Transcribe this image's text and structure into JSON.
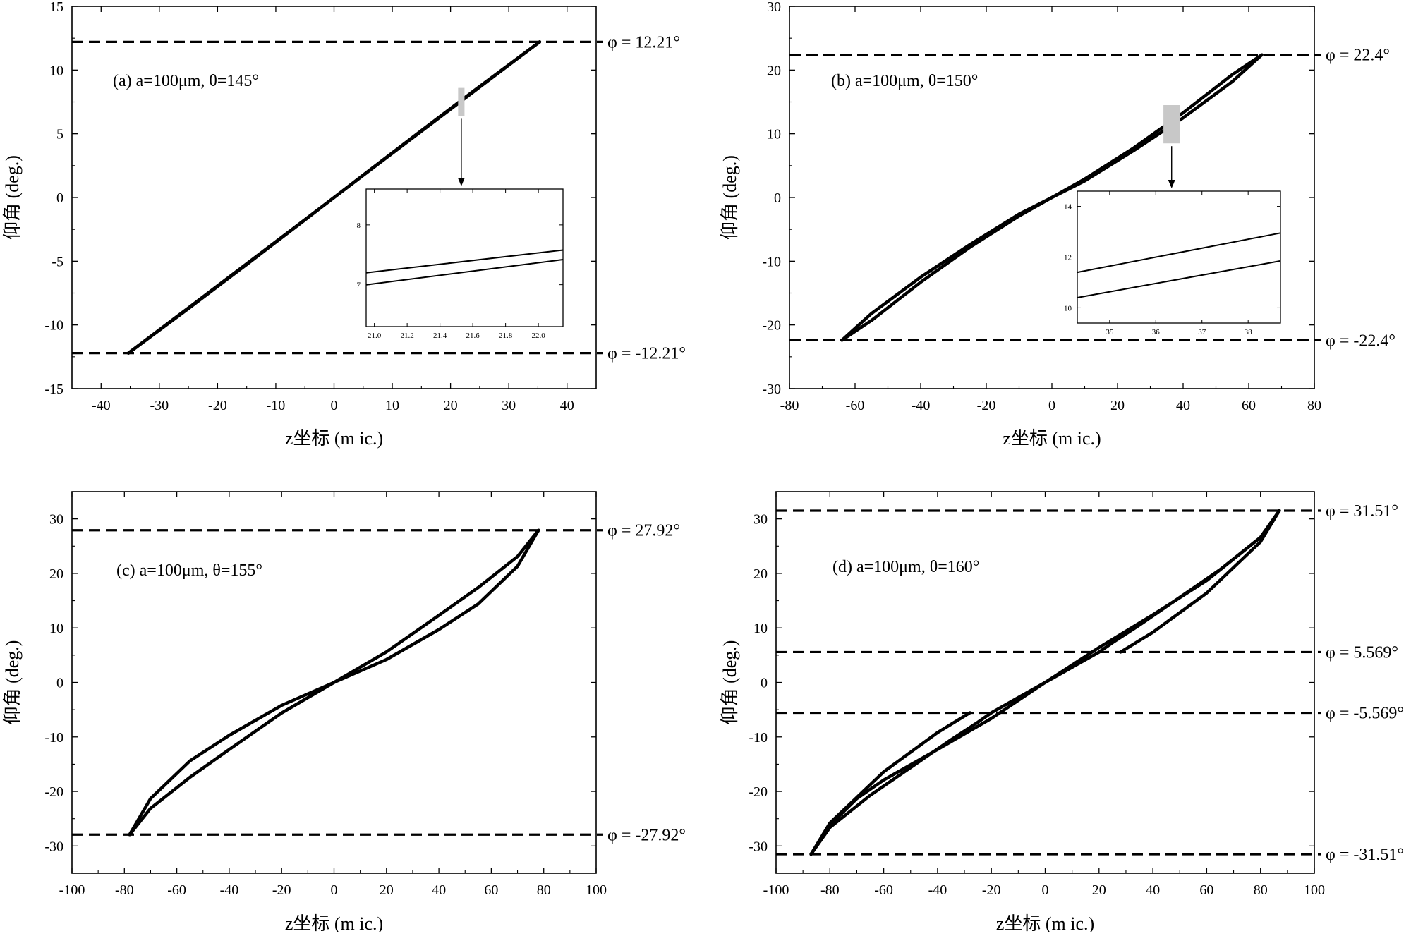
{
  "chart_data": [
    {
      "type": "line",
      "panel": "a",
      "annotation": "(a) a=100μm, θ=145°",
      "xlabel": "z坐标 (m ic.)",
      "ylabel": "仰角 (deg.)",
      "xlim": [
        -45,
        45
      ],
      "ylim": [
        -15,
        15
      ],
      "xticks": [
        -40,
        -30,
        -20,
        -10,
        0,
        10,
        20,
        30,
        40
      ],
      "yticks": [
        -15,
        -10,
        -5,
        0,
        5,
        10,
        15
      ],
      "hlines": [
        {
          "y": 12.21,
          "label": "φ = 12.21°"
        },
        {
          "y": -12.21,
          "label": "φ = -12.21°"
        }
      ],
      "series": [
        {
          "x": [
            -35.3,
            -25,
            -15,
            -5,
            0,
            5,
            15,
            25,
            35.3
          ],
          "y": [
            -12.21,
            -8.66,
            -5.2,
            -1.74,
            0,
            1.76,
            5.25,
            8.72,
            12.21
          ]
        },
        {
          "x": [
            -35.3,
            -25,
            -15,
            -5,
            0,
            5,
            15,
            25,
            35.3
          ],
          "y": [
            -12.21,
            -8.72,
            -5.25,
            -1.76,
            0,
            1.74,
            5.2,
            8.66,
            12.21
          ]
        }
      ],
      "inset": {
        "zoom_box": {
          "x": [
            21.3,
            22.4
          ],
          "y": [
            6.4,
            8.6
          ]
        },
        "xlim": [
          20.95,
          22.15
        ],
        "ylim": [
          6.3,
          8.6
        ],
        "xticks": [
          21.0,
          21.2,
          21.4,
          21.6,
          21.8,
          22.0
        ],
        "yticks": [
          7,
          8
        ],
        "series": [
          {
            "x": [
              20.95,
              22.15
            ],
            "y": [
              7.2,
              7.58
            ]
          },
          {
            "x": [
              20.95,
              22.15
            ],
            "y": [
              7.0,
              7.42
            ]
          }
        ]
      }
    },
    {
      "type": "line",
      "panel": "b",
      "annotation": "(b) a=100μm, θ=150°",
      "xlabel": "z坐标 (m ic.)",
      "ylabel": "仰角 (deg.)",
      "xlim": [
        -80,
        80
      ],
      "ylim": [
        -30,
        30
      ],
      "xticks": [
        -80,
        -60,
        -40,
        -20,
        0,
        20,
        40,
        60,
        80
      ],
      "yticks": [
        -30,
        -20,
        -10,
        0,
        10,
        20,
        30
      ],
      "hlines": [
        {
          "y": 22.4,
          "label": "φ = 22.4°"
        },
        {
          "y": -22.4,
          "label": "φ = -22.4°"
        }
      ],
      "series": [
        {
          "x": [
            -64,
            -55,
            -40,
            -25,
            -10,
            0,
            10,
            25,
            40,
            55,
            64
          ],
          "y": [
            -22.4,
            -18.2,
            -12.5,
            -7.4,
            -2.6,
            0,
            2.9,
            7.8,
            13.3,
            19.3,
            22.4
          ]
        },
        {
          "x": [
            -64,
            -55,
            -40,
            -25,
            -10,
            0,
            10,
            25,
            40,
            55,
            64
          ],
          "y": [
            -22.4,
            -19.3,
            -13.3,
            -7.8,
            -2.9,
            0,
            2.6,
            7.4,
            12.5,
            18.2,
            22.4
          ]
        }
      ],
      "inset": {
        "zoom_box": {
          "x": [
            34,
            39
          ],
          "y": [
            8.5,
            14.5
          ]
        },
        "xlim": [
          34.3,
          38.7
        ],
        "ylim": [
          9.4,
          14.6
        ],
        "xticks": [
          35,
          36,
          37,
          38
        ],
        "yticks": [
          10,
          12,
          14
        ],
        "series": [
          {
            "x": [
              34.3,
              38.7
            ],
            "y": [
              11.4,
              12.95
            ]
          },
          {
            "x": [
              34.3,
              38.7
            ],
            "y": [
              10.4,
              11.85
            ]
          }
        ]
      }
    },
    {
      "type": "line",
      "panel": "c",
      "annotation": "(c) a=100μm, θ=155°",
      "xlabel": "z坐标 (m ic.)",
      "ylabel": "仰角 (deg.)",
      "xlim": [
        -100,
        100
      ],
      "ylim": [
        -35,
        35
      ],
      "xticks": [
        -100,
        -80,
        -60,
        -40,
        -20,
        0,
        20,
        40,
        60,
        80,
        100
      ],
      "yticks": [
        -30,
        -20,
        -10,
        0,
        10,
        20,
        30
      ],
      "hlines": [
        {
          "y": 27.92,
          "label": "φ = 27.92°"
        },
        {
          "y": -27.92,
          "label": "φ = -27.92°"
        }
      ],
      "series": [
        {
          "x": [
            -78,
            -70,
            -55,
            -40,
            -20,
            0,
            20,
            40,
            55,
            70,
            78
          ],
          "y": [
            -27.92,
            -21.3,
            -14.4,
            -9.7,
            -4.2,
            0,
            5.6,
            12.3,
            17.4,
            23.1,
            27.92
          ]
        },
        {
          "x": [
            -78,
            -70,
            -55,
            -40,
            -20,
            0,
            20,
            40,
            55,
            70,
            78
          ],
          "y": [
            -27.92,
            -23.1,
            -17.4,
            -12.3,
            -5.6,
            0,
            4.2,
            9.7,
            14.4,
            21.3,
            27.92
          ]
        }
      ]
    },
    {
      "type": "line",
      "panel": "d",
      "annotation": "(d) a=100μm, θ=160°",
      "xlabel": "z坐标 (m ic.)",
      "ylabel": "仰角 (deg.)",
      "xlim": [
        -100,
        100
      ],
      "ylim": [
        -35,
        35
      ],
      "xticks": [
        -100,
        -80,
        -60,
        -40,
        -20,
        0,
        20,
        40,
        60,
        80,
        100
      ],
      "yticks": [
        -30,
        -20,
        -10,
        0,
        10,
        20,
        30
      ],
      "hlines": [
        {
          "y": 31.51,
          "label": "φ = 31.51°"
        },
        {
          "y": 5.569,
          "label": "φ = 5.569°"
        },
        {
          "y": -5.569,
          "label": "φ = -5.569°"
        },
        {
          "y": -31.51,
          "label": "φ = -31.51°"
        }
      ],
      "series": [
        {
          "x": [
            -87,
            -80,
            -70,
            -60,
            -40,
            -20,
            0,
            20,
            40,
            60,
            80,
            87
          ],
          "y": [
            -31.51,
            -26.2,
            -21.3,
            -17.9,
            -12.3,
            -6.6,
            0,
            6.4,
            12.4,
            18.7,
            26.6,
            31.51
          ]
        },
        {
          "x": [
            -87,
            -80,
            -65,
            -50,
            -35,
            -25,
            -20,
            0,
            20,
            25,
            35,
            50,
            65,
            80,
            87
          ],
          "y": [
            -31.51,
            -26.6,
            -20.7,
            -15.6,
            -10.5,
            -7.3,
            -5.569,
            0,
            5.569,
            7.3,
            10.5,
            15.6,
            20.7,
            26.6,
            31.51
          ]
        },
        {
          "x": [
            -28,
            -40,
            -60,
            -80,
            -87
          ],
          "y": [
            -5.569,
            -9.2,
            -16.4,
            -25.8,
            -31.51
          ]
        },
        {
          "x": [
            28,
            40,
            60,
            80,
            87
          ],
          "y": [
            5.569,
            9.2,
            16.4,
            25.8,
            31.51
          ]
        }
      ]
    }
  ]
}
